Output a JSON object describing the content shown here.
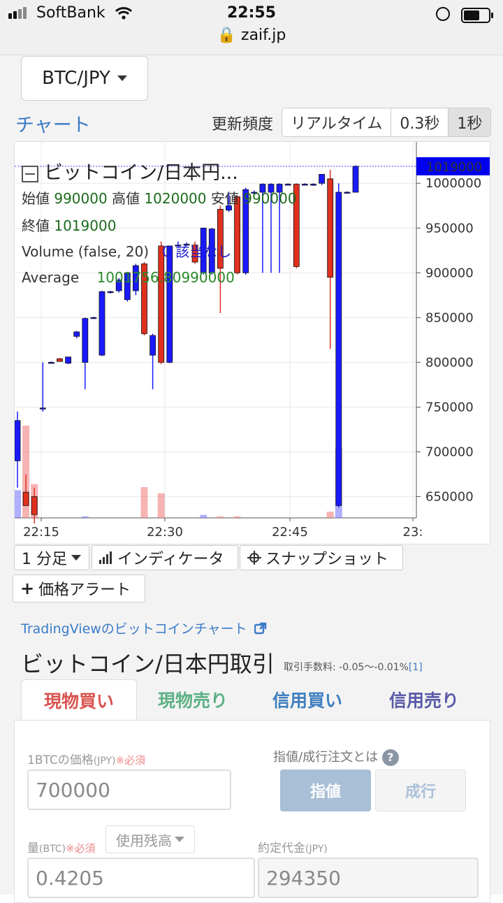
{
  "status_bar": {
    "carrier": "SoftBank",
    "time": "22:55",
    "url": "zaif.jp"
  },
  "pair_selector": {
    "label": "BTC/JPY"
  },
  "chart_link": "チャート",
  "update_frequency": {
    "label": "更新頻度",
    "options": [
      "リアルタイム",
      "0.3秒",
      "1秒"
    ],
    "selected": "1秒"
  },
  "chart_legend": {
    "title": "ビットコイン/日本円...",
    "open_label": "始値",
    "open": "990000",
    "high_label": "高値",
    "high": "1020000",
    "low_label": "安値",
    "low": "990000",
    "close_label": "終値",
    "close": "1019000",
    "volume_label": "Volume (false, 20)",
    "volume_value": "0 該当なし",
    "average_label": "Average",
    "average_value": "1001756.80990000"
  },
  "chart_data": {
    "type": "candlestick",
    "title": "ビットコイン/日本円",
    "ylim": [
      620000,
      1040000
    ],
    "y_ticks": [
      "1000000",
      "950000",
      "900000",
      "850000",
      "800000",
      "750000",
      "700000",
      "650000"
    ],
    "x_ticks": [
      "22:15",
      "22:30",
      "22:45",
      "23:"
    ],
    "last_price": "1019000",
    "colors": {
      "up": "#1a1aff",
      "down": "#e0301e"
    },
    "candles": [
      {
        "t": 0,
        "o": 690000,
        "h": 745000,
        "l": 660000,
        "c": 735000,
        "v": 0.9
      },
      {
        "t": 1,
        "o": 655000,
        "h": 675000,
        "l": 640000,
        "c": 640000,
        "v": 3.0
      },
      {
        "t": 2,
        "o": 650000,
        "h": 660000,
        "l": 620000,
        "c": 630000,
        "v": 1.1
      },
      {
        "t": 3,
        "o": 748000,
        "h": 800000,
        "l": 745000,
        "c": 749000,
        "v": 0
      },
      {
        "t": 4,
        "o": 800000,
        "h": 801000,
        "l": 799000,
        "c": 800000,
        "v": 0
      },
      {
        "t": 5,
        "o": 804000,
        "h": 805000,
        "l": 801000,
        "c": 801000,
        "v": 0
      },
      {
        "t": 6,
        "o": 799000,
        "h": 806000,
        "l": 798000,
        "c": 806000,
        "v": 0
      },
      {
        "t": 7,
        "o": 829000,
        "h": 835000,
        "l": 827000,
        "c": 834000,
        "v": 0
      },
      {
        "t": 8,
        "o": 800000,
        "h": 850000,
        "l": 770000,
        "c": 849000,
        "v": 0.05
      },
      {
        "t": 9,
        "o": 850000,
        "h": 851000,
        "l": 849000,
        "c": 850000,
        "v": 0
      },
      {
        "t": 10,
        "o": 808000,
        "h": 880000,
        "l": 807000,
        "c": 879000,
        "v": 0
      },
      {
        "t": 11,
        "o": 878000,
        "h": 880000,
        "l": 877000,
        "c": 879000,
        "v": 0
      },
      {
        "t": 12,
        "o": 880000,
        "h": 894000,
        "l": 878000,
        "c": 892000,
        "v": 0
      },
      {
        "t": 13,
        "o": 870000,
        "h": 900000,
        "l": 868000,
        "c": 900000,
        "v": 0
      },
      {
        "t": 14,
        "o": 880000,
        "h": 910000,
        "l": 875000,
        "c": 908000,
        "v": 0
      },
      {
        "t": 15,
        "o": 910000,
        "h": 912000,
        "l": 830000,
        "c": 832000,
        "v": 1.0
      },
      {
        "t": 16,
        "o": 808000,
        "h": 832000,
        "l": 770000,
        "c": 830000,
        "v": 0
      },
      {
        "t": 17,
        "o": 930000,
        "h": 935000,
        "l": 798000,
        "c": 800000,
        "v": 0.8
      },
      {
        "t": 18,
        "o": 800000,
        "h": 930000,
        "l": 799000,
        "c": 930000,
        "v": 0
      },
      {
        "t": 19,
        "o": 930000,
        "h": 935000,
        "l": 929000,
        "c": 931000,
        "v": 0
      },
      {
        "t": 20,
        "o": 932000,
        "h": 934000,
        "l": 930000,
        "c": 932000,
        "v": 0
      },
      {
        "t": 21,
        "o": 931000,
        "h": 935000,
        "l": 910000,
        "c": 912000,
        "v": 0
      },
      {
        "t": 22,
        "o": 900000,
        "h": 950000,
        "l": 898000,
        "c": 950000,
        "v": 0.1
      },
      {
        "t": 23,
        "o": 900000,
        "h": 950000,
        "l": 898000,
        "c": 949000,
        "v": 0
      },
      {
        "t": 24,
        "o": 971000,
        "h": 975000,
        "l": 855000,
        "c": 905000,
        "v": 0.05
      },
      {
        "t": 25,
        "o": 970000,
        "h": 990000,
        "l": 968000,
        "c": 975000,
        "v": 0
      },
      {
        "t": 26,
        "o": 985000,
        "h": 986000,
        "l": 898000,
        "c": 900000,
        "v": 0.05
      },
      {
        "t": 27,
        "o": 900000,
        "h": 995000,
        "l": 898000,
        "c": 993000,
        "v": 0
      },
      {
        "t": 28,
        "o": 990000,
        "h": 992000,
        "l": 988000,
        "c": 990000,
        "v": 0
      },
      {
        "t": 29,
        "o": 990000,
        "h": 1000000,
        "l": 900000,
        "c": 999000,
        "v": 0
      },
      {
        "t": 30,
        "o": 990000,
        "h": 1000000,
        "l": 900000,
        "c": 999000,
        "v": 0
      },
      {
        "t": 31,
        "o": 990000,
        "h": 1000000,
        "l": 900000,
        "c": 999000,
        "v": 0
      },
      {
        "t": 32,
        "o": 999000,
        "h": 1000000,
        "l": 998000,
        "c": 999000,
        "v": 0
      },
      {
        "t": 33,
        "o": 999000,
        "h": 1000000,
        "l": 905000,
        "c": 907000,
        "v": 0
      },
      {
        "t": 34,
        "o": 999000,
        "h": 1000000,
        "l": 998000,
        "c": 999000,
        "v": 0
      },
      {
        "t": 35,
        "o": 998000,
        "h": 1000000,
        "l": 997000,
        "c": 999000,
        "v": 0
      },
      {
        "t": 36,
        "o": 1000000,
        "h": 1010000,
        "l": 998000,
        "c": 1010000,
        "v": 0
      },
      {
        "t": 37,
        "o": 1005000,
        "h": 1015000,
        "l": 815000,
        "c": 895000,
        "v": 0.2
      },
      {
        "t": 38,
        "o": 640000,
        "h": 1000000,
        "l": 638000,
        "c": 990000,
        "v": 2.3
      },
      {
        "t": 39,
        "o": 990000,
        "h": 991000,
        "l": 989000,
        "c": 990000,
        "v": 0
      },
      {
        "t": 40,
        "o": 990000,
        "h": 1020000,
        "l": 990000,
        "c": 1019000,
        "v": 0
      }
    ]
  },
  "toolbar": {
    "interval": "1 分足",
    "indicators": "インディケータ",
    "snapshot": "スナップショット",
    "price_alert": "価格アラート"
  },
  "tradingview_link": "TradingViewのビットコインチャート",
  "trade_section": {
    "title": "ビットコイン/日本円取引",
    "fee_text": "取引手数料: -0.05〜-0.01%",
    "fee_link": "[1]"
  },
  "trade_tabs": [
    {
      "label": "現物買い",
      "color": "#d9534f"
    },
    {
      "label": "現物売り",
      "color": "#5cb085"
    },
    {
      "label": "信用買い",
      "color": "#3f7fbf"
    },
    {
      "label": "信用売り",
      "color": "#5a5aa8"
    }
  ],
  "form": {
    "price_label": "1BTCの価格",
    "price_unit": "(JPY)",
    "required": "※必須",
    "price_value": "700000",
    "order_type_label": "指値/成行注文とは",
    "limit_btn": "指値",
    "market_btn": "成行",
    "amount_label": "量",
    "amount_unit": "(BTC)",
    "balance_select": "使用残高",
    "amount_value": "0.4205",
    "total_label": "約定代金",
    "total_unit": "(JPY)",
    "total_value": "294350"
  }
}
